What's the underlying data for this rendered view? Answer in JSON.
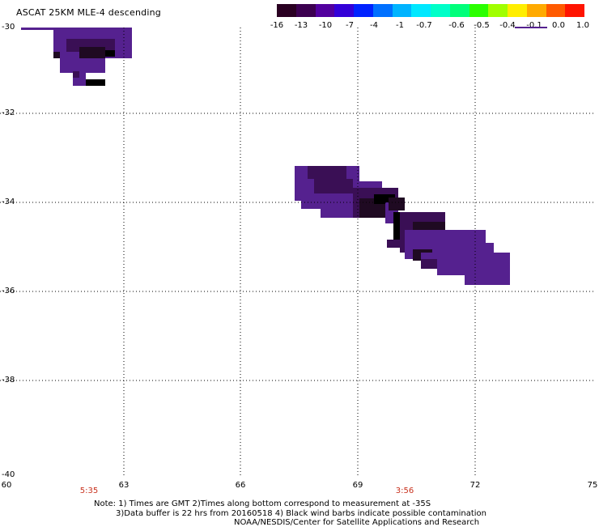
{
  "title": "ASCAT 25KM MLE-4 descending",
  "colorbar": {
    "labels": [
      "-16",
      "-13",
      "-10",
      "-7",
      "-4",
      "-1",
      "-0.7",
      "-0.6",
      "-0.5",
      "-0.4",
      "-0.1",
      "0.0",
      "1.0"
    ],
    "colors": [
      "#2a0022",
      "#3c0050",
      "#52009e",
      "#3300d8",
      "#0022ff",
      "#0070ff",
      "#00b4ff",
      "#00e8ff",
      "#00ffc8",
      "#00ff7a",
      "#2aff00",
      "#a0ff00",
      "#ffee00",
      "#ffaa00",
      "#ff5a00",
      "#ff1400"
    ]
  },
  "axes": {
    "y_ticks": [
      "-30",
      "-32",
      "-34",
      "-36",
      "-38",
      "-40"
    ],
    "x_ticks": [
      "60",
      "63",
      "66",
      "69",
      "72",
      "75"
    ],
    "times": [
      "5:35",
      "3:56"
    ]
  },
  "notes": {
    "line1": "Note: 1) Times are GMT 2)Times along bottom correspond to measurement at -35S",
    "line2": "3)Data buffer is 22 hrs from 20160518 4) Black wind barbs indicate possible contamination",
    "line3": "NOAA/NESDIS/Center for Satellite Applications and Research"
  }
}
